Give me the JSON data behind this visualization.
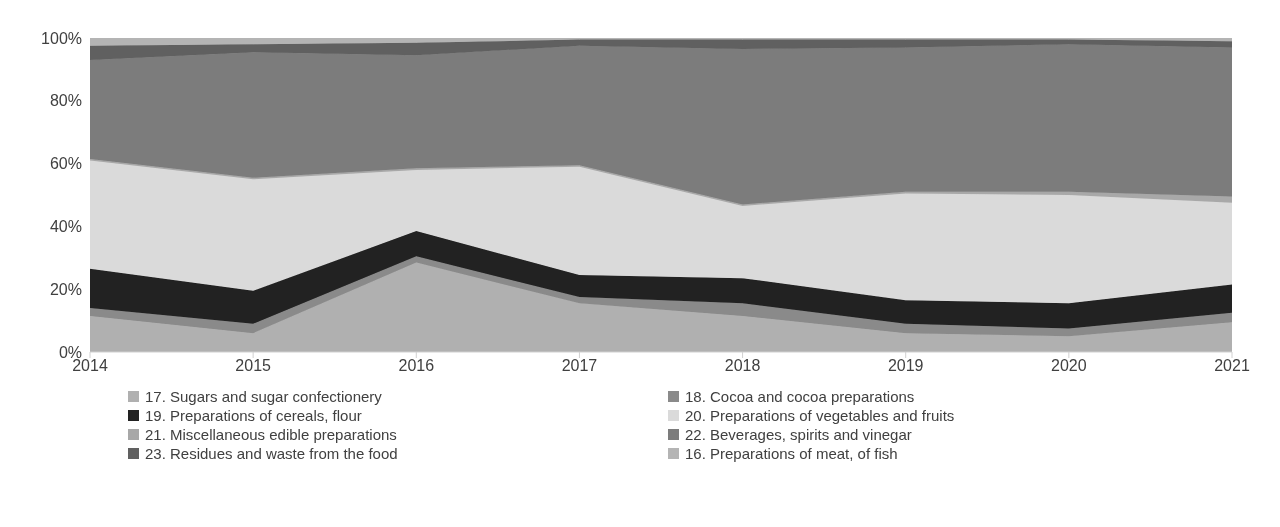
{
  "chart_data": {
    "type": "area",
    "stacked": true,
    "categories": [
      "2014",
      "2015",
      "2016",
      "2017",
      "2018",
      "2019",
      "2020",
      "2021"
    ],
    "ylim": [
      0,
      100
    ],
    "yticks": [
      {
        "value": 0,
        "label": "0%"
      },
      {
        "value": 20,
        "label": "20%"
      },
      {
        "value": 40,
        "label": "40%"
      },
      {
        "value": 60,
        "label": "60%"
      },
      {
        "value": 80,
        "label": "80%"
      },
      {
        "value": 100,
        "label": "100%"
      }
    ],
    "grid": false,
    "legend": "bottom",
    "series": [
      {
        "name": "17. Sugars and sugar confectionery",
        "color": "#b0b0b0",
        "values": [
          11.5,
          6,
          28.5,
          15.5,
          11.5,
          6,
          5,
          9.5
        ]
      },
      {
        "name": "18. Cocoa and cocoa preparations",
        "color": "#8a8a8a",
        "values": [
          2.5,
          3,
          2,
          2,
          4,
          3,
          2.5,
          3
        ]
      },
      {
        "name": "19. Preparations of cereals, flour",
        "color": "#222222",
        "values": [
          12.5,
          10.5,
          8,
          7,
          8,
          7.5,
          8,
          9
        ]
      },
      {
        "name": "20. Preparations of vegetables and fruits",
        "color": "#dadada",
        "values": [
          34.5,
          35.5,
          19.5,
          34.5,
          23,
          34,
          34.5,
          26
        ]
      },
      {
        "name": "21. Miscellaneous edible preparations",
        "color": "#a8a8a8",
        "values": [
          0.5,
          0.5,
          0.5,
          0.5,
          0.5,
          0.5,
          1,
          2
        ]
      },
      {
        "name": "22. Beverages, spirits and vinegar",
        "color": "#7c7c7c",
        "values": [
          31.5,
          40,
          36,
          38,
          49.5,
          46,
          47,
          47.5
        ]
      },
      {
        "name": "23. Residues and waste from the food",
        "color": "#606060",
        "values": [
          4.5,
          2.5,
          4,
          2,
          3,
          2.5,
          1.5,
          2
        ]
      },
      {
        "name": "16. Preparations of meat, of fish",
        "color": "#b4b4b4",
        "values": [
          2.5,
          2,
          1.5,
          0.5,
          0.5,
          0.5,
          0.5,
          1
        ]
      }
    ]
  }
}
